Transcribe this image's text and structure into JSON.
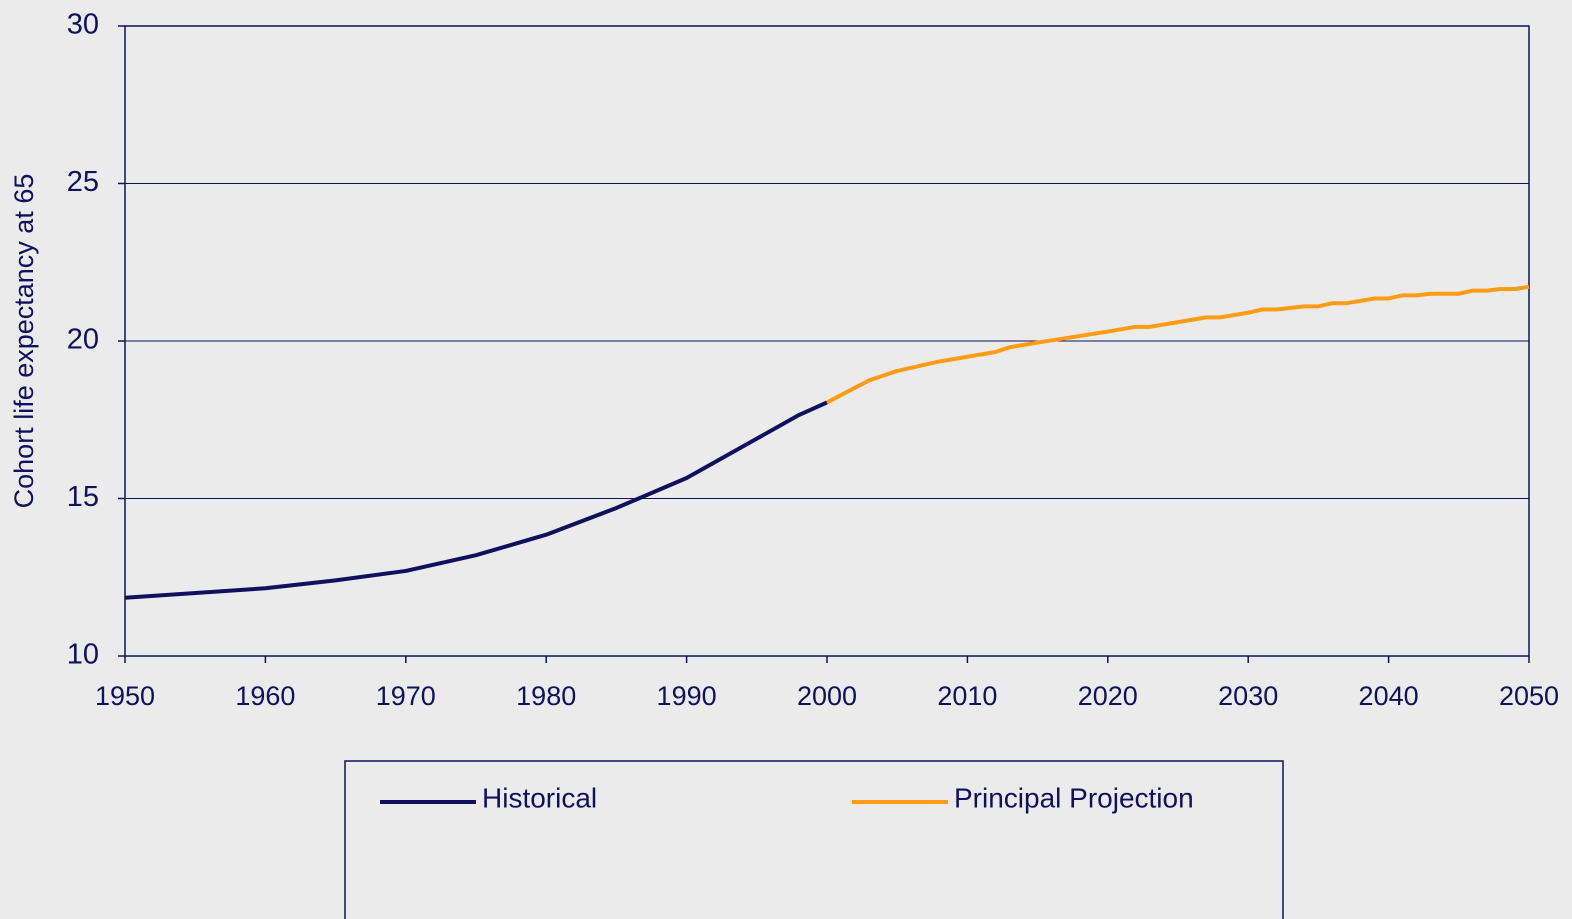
{
  "chart_data": {
    "type": "line",
    "y_label": "Cohort life expectancy at 65",
    "series": [
      {
        "name": "Historical",
        "color": "#10105e",
        "x": [
          1950,
          1960,
          1965,
          1970,
          1975,
          1980,
          1985,
          1990,
          1995,
          1998,
          2000
        ],
        "values": [
          11.85,
          12.15,
          12.4,
          12.7,
          13.2,
          13.85,
          14.7,
          15.65,
          16.9,
          17.65,
          18.05
        ]
      },
      {
        "name": "Principal Projection",
        "color": "#ff9c14",
        "x": [
          2000,
          2003,
          2005,
          2008,
          2010,
          2012,
          2013,
          2015,
          2020,
          2022,
          2023,
          2025,
          2027,
          2028,
          2030,
          2031,
          2032,
          2034,
          2035,
          2036,
          2037,
          2039,
          2040,
          2041,
          2042,
          2043,
          2045,
          2046,
          2047,
          2048,
          2049,
          2050
        ],
        "values": [
          18.05,
          18.75,
          19.05,
          19.35,
          19.5,
          19.65,
          19.8,
          19.95,
          20.3,
          20.45,
          20.45,
          20.6,
          20.75,
          20.75,
          20.9,
          21.0,
          21.0,
          21.1,
          21.1,
          21.2,
          21.2,
          21.35,
          21.35,
          21.45,
          21.45,
          21.5,
          21.5,
          21.6,
          21.6,
          21.65,
          21.65,
          21.72
        ]
      }
    ],
    "xlim": [
      1950,
      2050
    ],
    "xticks": [
      1950,
      1960,
      1970,
      1980,
      1990,
      2000,
      2010,
      2020,
      2030,
      2040,
      2050
    ],
    "ylim": [
      10,
      30
    ],
    "yticks": [
      10,
      15,
      20,
      25,
      30
    ],
    "grid": true
  }
}
